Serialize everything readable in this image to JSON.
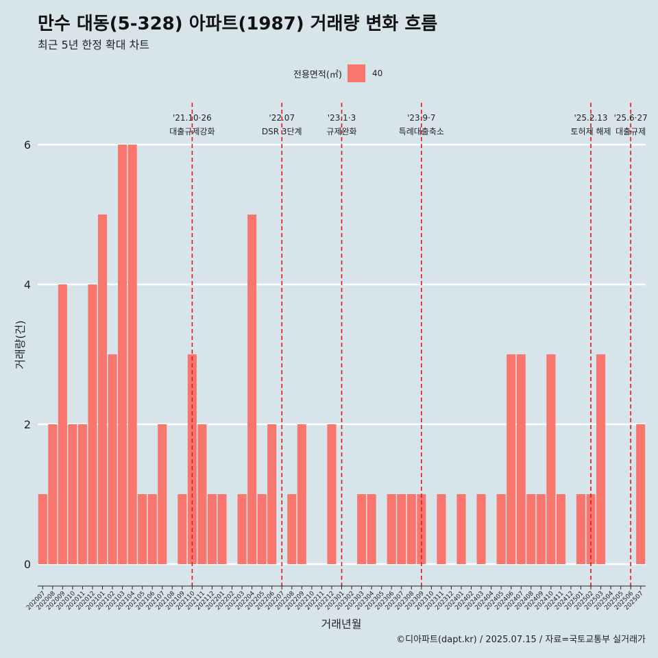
{
  "title": "만수 대동(5-328) 아파트(1987) 거래량 변화 흐름",
  "subtitle": "최근 5년 한정 확대 차트",
  "caption": "©디아파트(dapt.kr) / 2025.07.15 / 자료=국토교통부 실거래가",
  "colors": {
    "background": "#d7e4ea",
    "bar": "#f8766d",
    "event_line": "#e8141c",
    "grid": "#ffffff"
  },
  "chart_data": {
    "type": "bar",
    "title": "만수 대동(5-328) 아파트(1987) 거래량 변화 흐름",
    "subtitle": "최근 5년 한정 확대 차트",
    "xlabel": "거래년월",
    "ylabel": "거래량(건)",
    "ylim": [
      0,
      6
    ],
    "yticks": [
      0,
      2,
      4,
      6
    ],
    "grid": true,
    "legend_title": "전용면적(㎡)",
    "legend_position": "top",
    "categories": [
      "202007",
      "202008",
      "202009",
      "202010",
      "202011",
      "202012",
      "202101",
      "202102",
      "202103",
      "202104",
      "202105",
      "202106",
      "202107",
      "202108",
      "202109",
      "202110",
      "202111",
      "202112",
      "202201",
      "202202",
      "202203",
      "202204",
      "202205",
      "202206",
      "202207",
      "202208",
      "202209",
      "202210",
      "202211",
      "202212",
      "202301",
      "202302",
      "202303",
      "202304",
      "202305",
      "202306",
      "202307",
      "202308",
      "202309",
      "202310",
      "202311",
      "202312",
      "202401",
      "202402",
      "202403",
      "202404",
      "202405",
      "202406",
      "202407",
      "202408",
      "202409",
      "202410",
      "202411",
      "202412",
      "202501",
      "202502",
      "202503",
      "202504",
      "202505",
      "202506",
      "202507"
    ],
    "series": [
      {
        "name": "40",
        "values": [
          1,
          2,
          4,
          2,
          2,
          4,
          5,
          3,
          6,
          6,
          1,
          1,
          2,
          0,
          1,
          3,
          2,
          1,
          1,
          0,
          1,
          5,
          1,
          2,
          0,
          1,
          2,
          0,
          0,
          2,
          0,
          0,
          1,
          1,
          0,
          1,
          1,
          1,
          1,
          0,
          1,
          0,
          1,
          0,
          1,
          0,
          1,
          3,
          3,
          1,
          1,
          3,
          1,
          0,
          1,
          1,
          3,
          0,
          0,
          0,
          2
        ]
      }
    ],
    "events": [
      {
        "date": "202110",
        "label_top": "'21.10·26",
        "label_bottom": "대출규제강화",
        "style": "dashed"
      },
      {
        "date": "202207",
        "label_top": "'22.07",
        "label_bottom": "DSR 3단계",
        "style": "dashed"
      },
      {
        "date": "202301",
        "label_top": "'23.1·3",
        "label_bottom": "규제완화",
        "style": "dashed"
      },
      {
        "date": "202309",
        "label_top": "'23.9·7",
        "label_bottom": "특례대출축소",
        "style": "dashed"
      },
      {
        "date": "202502",
        "label_top": "'25.2.13",
        "label_bottom": "토허제 해제",
        "style": "dashed"
      },
      {
        "date": "202506",
        "label_top": "'25.6·27",
        "label_bottom": "대출규제",
        "style": "dashed"
      }
    ]
  }
}
